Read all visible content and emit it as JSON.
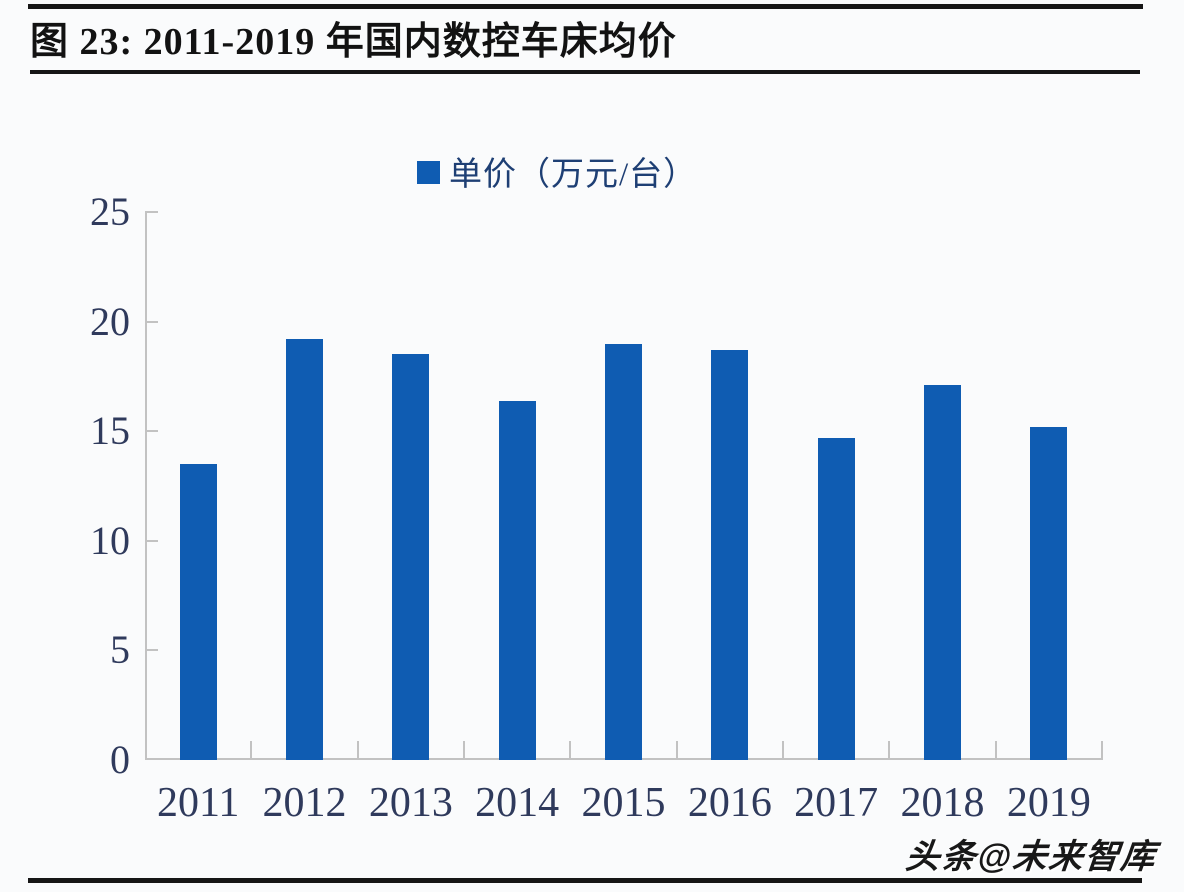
{
  "header": {
    "title": "图 23: 2011-2019 年国内数控车床均价"
  },
  "watermark": {
    "text": "头条@未来智库"
  },
  "chart_data": {
    "type": "bar",
    "title": "图 23: 2011-2019 年国内数控车床均价",
    "legend": {
      "label": "单价（万元/台）",
      "position": "top-center"
    },
    "categories": [
      "2011",
      "2012",
      "2013",
      "2014",
      "2015",
      "2016",
      "2017",
      "2018",
      "2019"
    ],
    "series": [
      {
        "name": "单价（万元/台）",
        "values": [
          13.5,
          19.2,
          18.5,
          16.4,
          19.0,
          18.7,
          14.7,
          17.1,
          15.2
        ]
      }
    ],
    "xlabel": "",
    "ylabel": "",
    "ylim": [
      0,
      25
    ],
    "yticks": [
      0,
      5,
      10,
      15,
      20,
      25
    ],
    "grid": false,
    "colors": {
      "bar": "#0f5cb2",
      "axis": "#c2c2c2",
      "tick_label": "#2f3a5c",
      "legend_text": "#1e3f74",
      "title_text": "#121212",
      "background": "#fafbfc"
    }
  }
}
